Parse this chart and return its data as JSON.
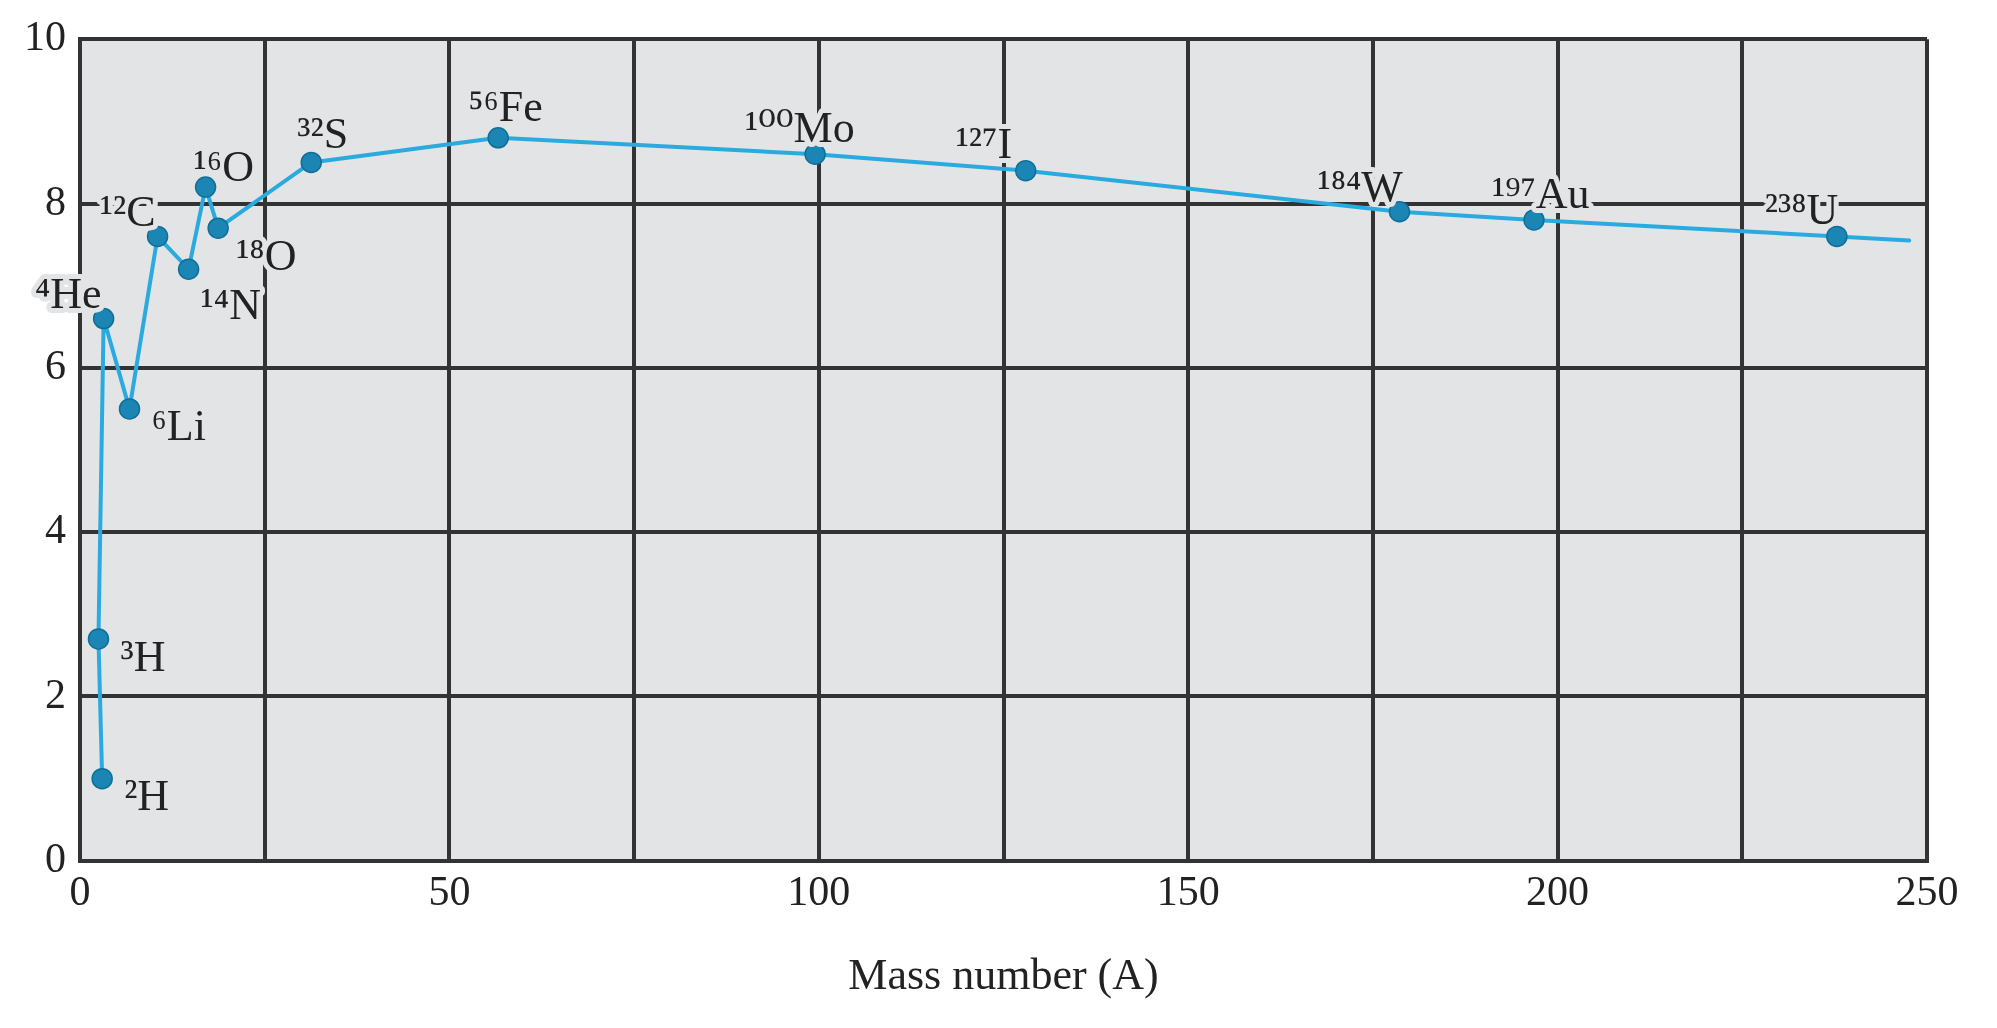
{
  "chart_data": {
    "type": "line",
    "xlabel": "Mass number (A)",
    "xlim": [
      0,
      250
    ],
    "ylim": [
      0,
      10
    ],
    "xticks": [
      0,
      {
        "value": 25,
        "label": null
      },
      50,
      {
        "value": 75,
        "label": null
      },
      100,
      {
        "value": 125,
        "label": null
      },
      150,
      {
        "value": 175,
        "label": null
      },
      200,
      {
        "value": 225,
        "label": null
      },
      250
    ],
    "yticks": [
      0,
      2,
      4,
      6,
      8,
      10
    ],
    "grid": true,
    "series": [
      {
        "type": "line",
        "marker": "none",
        "color": "#2aaade",
        "x": [
          3,
          2.5,
          3.2,
          6.7,
          10.5,
          14.7,
          17,
          18.7,
          31.3,
          56.6,
          99.5,
          128,
          178.6,
          196.8,
          237.8,
          247.6
        ],
        "values": [
          1.0,
          2.7,
          6.6,
          5.5,
          7.6,
          7.2,
          8.2,
          7.7,
          8.5,
          8.8,
          8.6,
          8.4,
          7.9,
          7.8,
          7.6,
          7.55
        ]
      },
      {
        "type": "scatter",
        "marker": "circle",
        "color": "#1b86b4",
        "x": [
          3,
          2.5,
          3.2,
          6.7,
          10.5,
          14.7,
          17,
          18.7,
          31.3,
          56.6,
          99.5,
          128,
          178.6,
          196.8,
          237.8
        ],
        "values": [
          1.0,
          2.7,
          6.6,
          5.5,
          7.6,
          7.2,
          8.2,
          7.7,
          8.5,
          8.8,
          8.6,
          8.4,
          7.9,
          7.8,
          7.6
        ]
      }
    ],
    "annotations": [
      {
        "text": "²H",
        "x": 3,
        "y": 1.0
      },
      {
        "text": "³H",
        "x": 2.5,
        "y": 2.7
      },
      {
        "text": "⁴He",
        "x": 3.2,
        "y": 6.6
      },
      {
        "text": "⁶Li",
        "x": 6.7,
        "y": 5.5
      },
      {
        "text": "¹²C",
        "x": 10.5,
        "y": 7.6
      },
      {
        "text": "¹⁴N",
        "x": 14.7,
        "y": 7.2
      },
      {
        "text": "¹⁶O",
        "x": 17,
        "y": 8.2
      },
      {
        "text": "¹⁸O",
        "x": 18.7,
        "y": 7.7
      },
      {
        "text": "³²S",
        "x": 31.3,
        "y": 8.5
      },
      {
        "text": "⁵⁶Fe",
        "x": 56.6,
        "y": 8.8
      },
      {
        "text": "¹⁰⁰Mo",
        "x": 99.5,
        "y": 8.6
      },
      {
        "text": "¹²⁷I",
        "x": 128,
        "y": 8.4
      },
      {
        "text": "¹⁸⁴W",
        "x": 178.6,
        "y": 7.9
      },
      {
        "text": "¹⁹⁷Au",
        "x": 196.8,
        "y": 7.8
      },
      {
        "text": "²³⁸U",
        "x": 237.8,
        "y": 7.6
      }
    ]
  }
}
